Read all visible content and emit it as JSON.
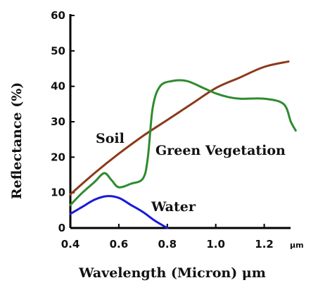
{
  "chart_data": {
    "type": "line",
    "xlabel": "Wavelength (Micron) μm",
    "ylabel": "Reflectance (%)",
    "x_unit": "μm",
    "xlim": [
      0.4,
      1.3
    ],
    "ylim": [
      0,
      60
    ],
    "x_ticks": [
      0.4,
      0.6,
      0.8,
      1.0,
      1.2
    ],
    "x_tick_labels": [
      "0.4",
      "0.6",
      "0.8",
      "1.0",
      "1.2"
    ],
    "y_ticks": [
      0,
      10,
      20,
      30,
      40,
      50,
      60
    ],
    "y_tick_labels": [
      "0",
      "10",
      "20",
      "30",
      "40",
      "50",
      "60"
    ],
    "grid": false,
    "series": [
      {
        "name": "Soil",
        "color": "#8b3a1a",
        "points": [
          [
            0.4,
            9.5
          ],
          [
            0.5,
            15.5
          ],
          [
            0.6,
            21
          ],
          [
            0.7,
            26
          ],
          [
            0.8,
            30.5
          ],
          [
            0.9,
            35
          ],
          [
            1.0,
            39.5
          ],
          [
            1.1,
            42.5
          ],
          [
            1.2,
            45.5
          ],
          [
            1.3,
            47
          ]
        ]
      },
      {
        "name": "Green Vegetation",
        "color": "#2e8b2e",
        "points": [
          [
            0.4,
            6.5
          ],
          [
            0.45,
            10
          ],
          [
            0.5,
            13
          ],
          [
            0.54,
            15.5
          ],
          [
            0.57,
            13.5
          ],
          [
            0.6,
            11.5
          ],
          [
            0.65,
            12.5
          ],
          [
            0.7,
            14
          ],
          [
            0.72,
            20
          ],
          [
            0.74,
            34
          ],
          [
            0.77,
            40
          ],
          [
            0.82,
            41.5
          ],
          [
            0.88,
            41.5
          ],
          [
            0.95,
            39.5
          ],
          [
            1.0,
            38
          ],
          [
            1.05,
            37
          ],
          [
            1.1,
            36.5
          ],
          [
            1.2,
            36.5
          ],
          [
            1.28,
            35
          ],
          [
            1.31,
            30
          ],
          [
            1.33,
            27.5
          ]
        ]
      },
      {
        "name": "Water",
        "color": "#1a1ad6",
        "points": [
          [
            0.4,
            4
          ],
          [
            0.45,
            6
          ],
          [
            0.5,
            8
          ],
          [
            0.55,
            9
          ],
          [
            0.6,
            8.5
          ],
          [
            0.65,
            6.5
          ],
          [
            0.7,
            4.5
          ],
          [
            0.75,
            2
          ],
          [
            0.8,
            0
          ]
        ]
      }
    ]
  }
}
